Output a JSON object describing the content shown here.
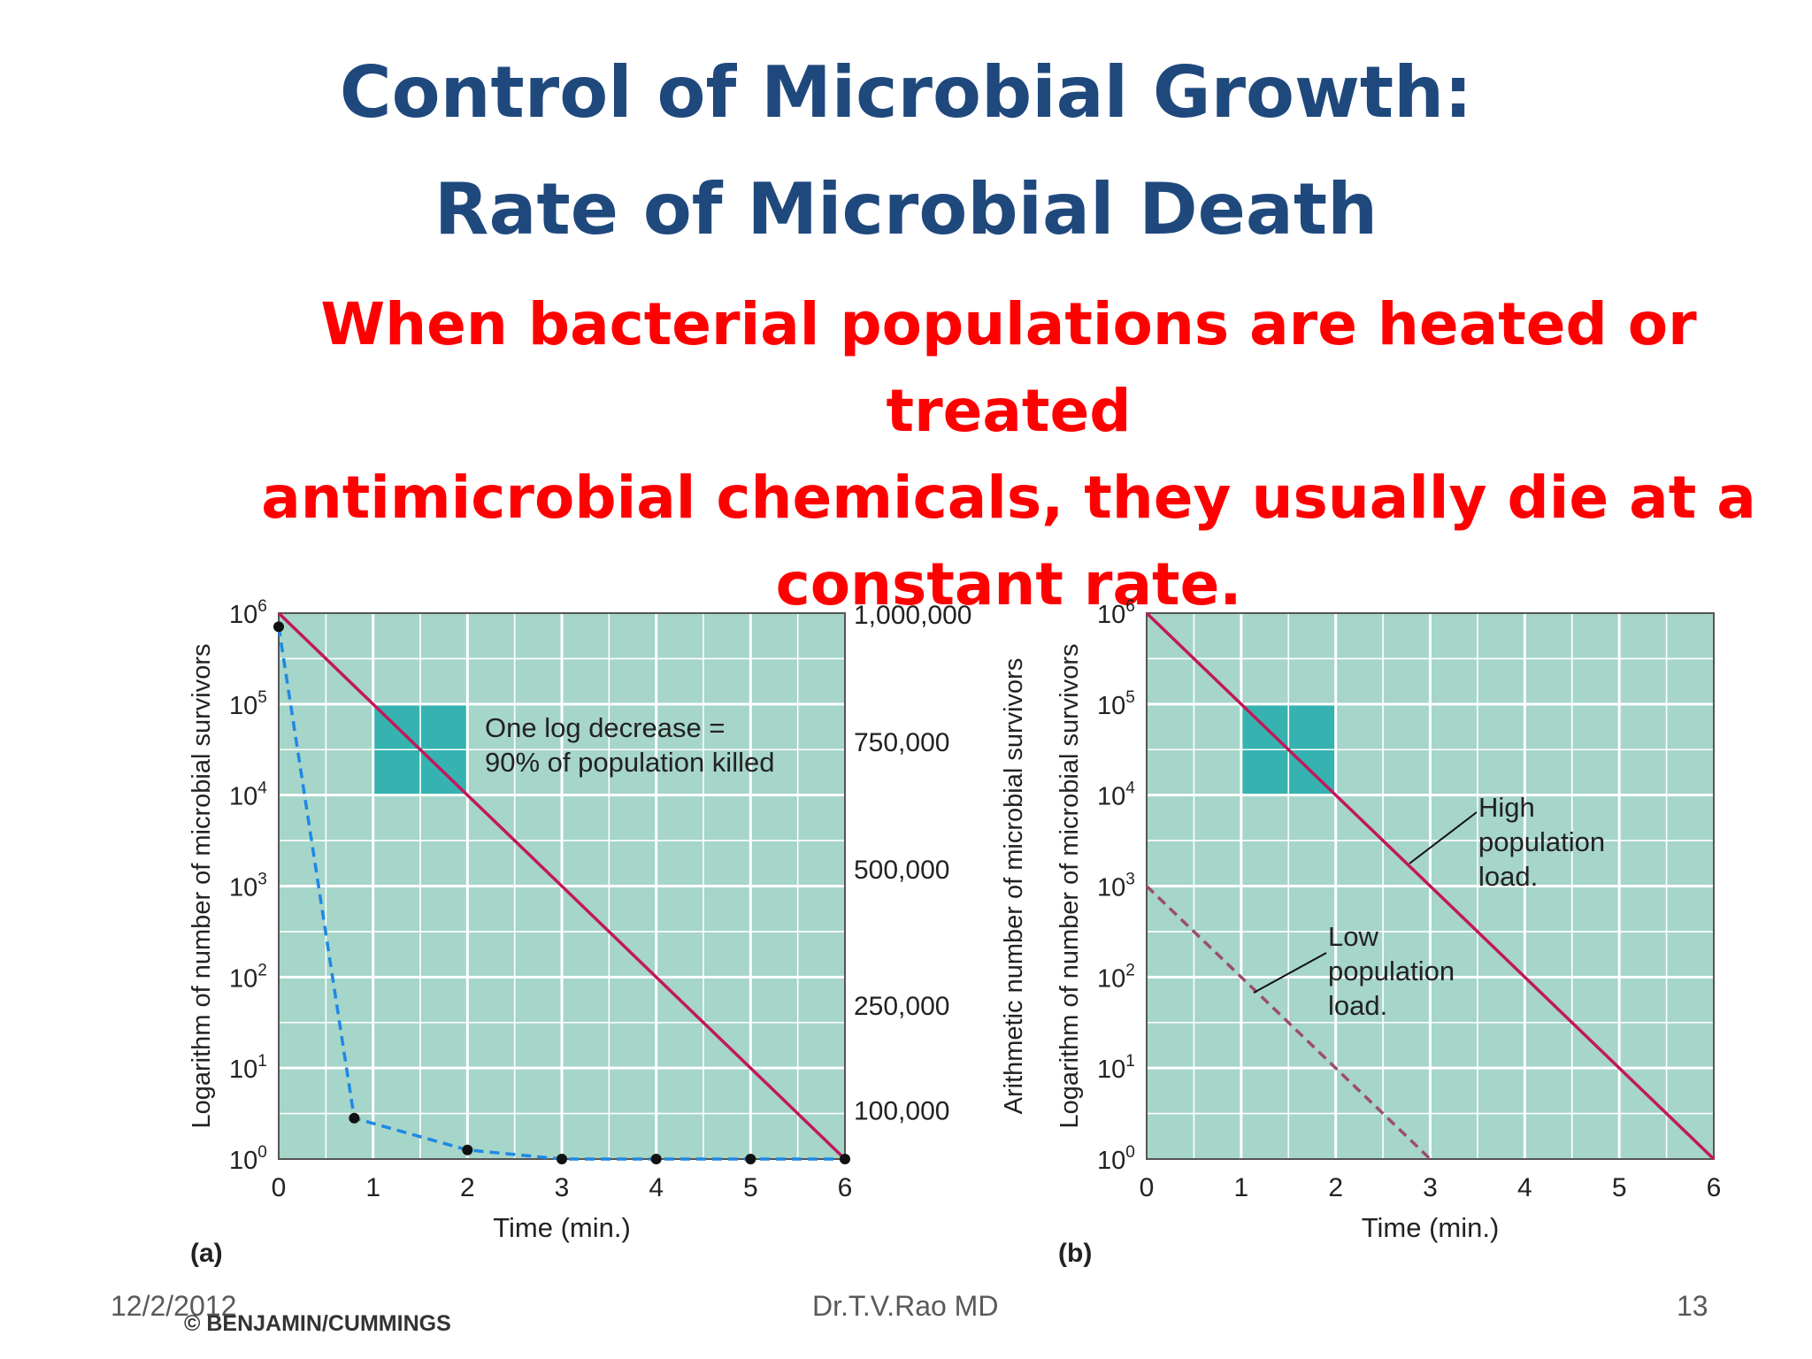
{
  "slide": {
    "title_line1": "Control of Microbial Growth:",
    "title_line2": "Rate of Microbial Death",
    "subtitle_lines": [
      "When bacterial populations are heated or treated",
      "antimicrobial chemicals, they usually die at a",
      "constant rate."
    ],
    "footer_date": "12/2/2012",
    "footer_author": "Dr.T.V.Rao MD",
    "footer_page": "13",
    "credit": "© BENJAMIN/CUMMINGS",
    "colors": {
      "title": "#1f497d",
      "subtitle": "#ff0000",
      "plot_background": "#a6d5c9",
      "grid": "#ffffff",
      "highlight_box": "#36b3b0",
      "solid_line": "#c2185b",
      "dashed_blue": "#1e88e5",
      "dashed_low": "#9c4d6f"
    }
  },
  "chart_data": [
    {
      "type": "line",
      "panel_label": "(a)",
      "xlabel": "Time (min.)",
      "ylabel": "Logarithm of number of microbial survivors",
      "ylabel_right": "Arithmetic number of microbial survivors",
      "xlim": [
        0,
        6
      ],
      "ylim": [
        0,
        6
      ],
      "xticks": [
        "0",
        "1",
        "2",
        "3",
        "4",
        "5",
        "6"
      ],
      "yticks": [
        {
          "base": "10",
          "exp": "0"
        },
        {
          "base": "10",
          "exp": "1"
        },
        {
          "base": "10",
          "exp": "2"
        },
        {
          "base": "10",
          "exp": "3"
        },
        {
          "base": "10",
          "exp": "4"
        },
        {
          "base": "10",
          "exp": "5"
        },
        {
          "base": "10",
          "exp": "6"
        }
      ],
      "right_ticks": [
        {
          "label": "1,000,000",
          "log_pos": 6
        },
        {
          "label": "750,000",
          "log_pos": 4.6
        },
        {
          "label": "500,000",
          "log_pos": 3.2
        },
        {
          "label": "250,000",
          "log_pos": 1.7
        },
        {
          "label": "100,000",
          "log_pos": 0.55
        }
      ],
      "series": [
        {
          "style": "solid",
          "x": [
            0,
            6
          ],
          "y": [
            6,
            0
          ]
        },
        {
          "style": "dashed-points",
          "x": [
            0,
            0.8,
            2,
            3,
            4,
            5,
            6
          ],
          "y": [
            5.85,
            0.45,
            0.1,
            0,
            0,
            0,
            0
          ]
        }
      ],
      "highlight": {
        "x": [
          1,
          2
        ],
        "y": [
          4,
          5
        ]
      },
      "annotation": [
        "One log decrease =",
        "90% of population killed"
      ]
    },
    {
      "type": "line",
      "panel_label": "(b)",
      "xlabel": "Time (min.)",
      "ylabel": "Logarithm of number of microbial survivors",
      "xlim": [
        0,
        6
      ],
      "ylim": [
        0,
        6
      ],
      "xticks": [
        "0",
        "1",
        "2",
        "3",
        "4",
        "5",
        "6"
      ],
      "yticks": [
        {
          "base": "10",
          "exp": "0"
        },
        {
          "base": "10",
          "exp": "1"
        },
        {
          "base": "10",
          "exp": "2"
        },
        {
          "base": "10",
          "exp": "3"
        },
        {
          "base": "10",
          "exp": "4"
        },
        {
          "base": "10",
          "exp": "5"
        },
        {
          "base": "10",
          "exp": "6"
        }
      ],
      "series": [
        {
          "name": "High population load.",
          "style": "solid",
          "x": [
            0,
            6
          ],
          "y": [
            6,
            0
          ]
        },
        {
          "name": "Low population load.",
          "style": "dashed",
          "x": [
            0,
            3
          ],
          "y": [
            3,
            0
          ]
        }
      ],
      "highlight": {
        "x": [
          1,
          2
        ],
        "y": [
          4,
          5
        ]
      },
      "annotations": [
        {
          "lines": [
            "High",
            "population",
            "load."
          ]
        },
        {
          "lines": [
            "Low",
            "population",
            "load."
          ]
        }
      ]
    }
  ]
}
